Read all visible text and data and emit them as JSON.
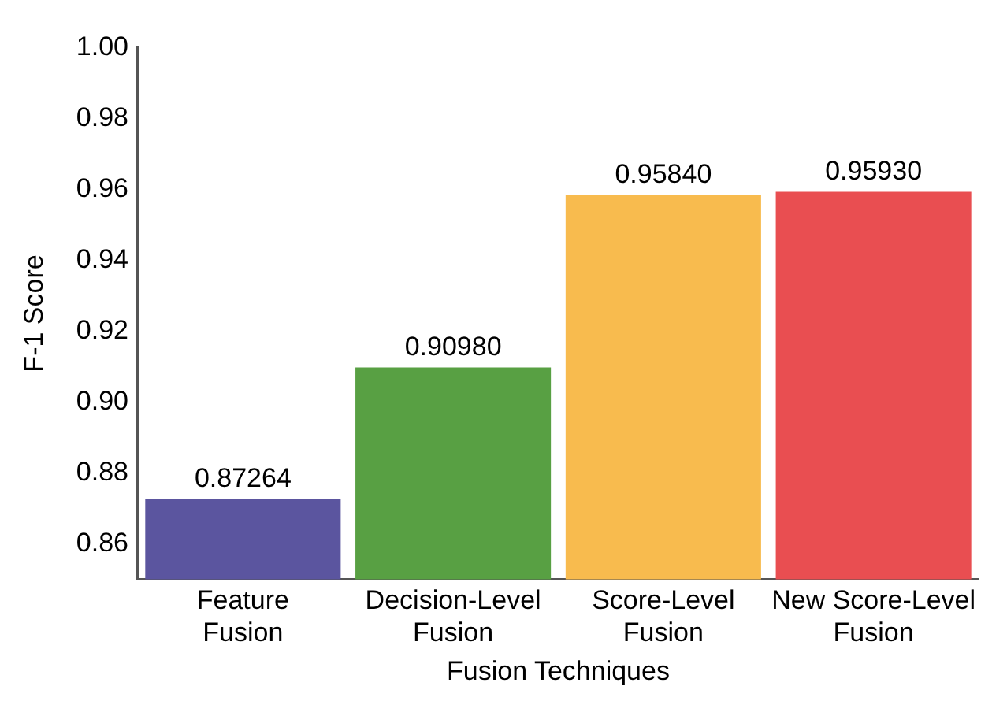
{
  "chart_data": {
    "type": "bar",
    "xlabel": "Fusion Techniques",
    "ylabel": "F-1 Score",
    "categories": [
      "Feature Fusion",
      "Decision-Level Fusion",
      "Score-Level Fusion",
      "New Score-Level Fusion"
    ],
    "values": [
      0.87264,
      0.9098,
      0.9584,
      0.9593
    ],
    "colors": [
      "#5b559f",
      "#58a043",
      "#f8bb4e",
      "#e94e51"
    ],
    "value_labels": [
      "0.87264",
      "0.90980",
      "0.95840",
      "0.95930"
    ],
    "ylim": [
      0.85,
      1.0
    ],
    "yticks": [
      0.86,
      0.88,
      {
        "value": 0.9,
        "label": "0.90"
      },
      0.92,
      0.94,
      0.96,
      0.98,
      {
        "value": 1.0,
        "label": "1.00"
      }
    ],
    "grid": false,
    "legend": false
  }
}
